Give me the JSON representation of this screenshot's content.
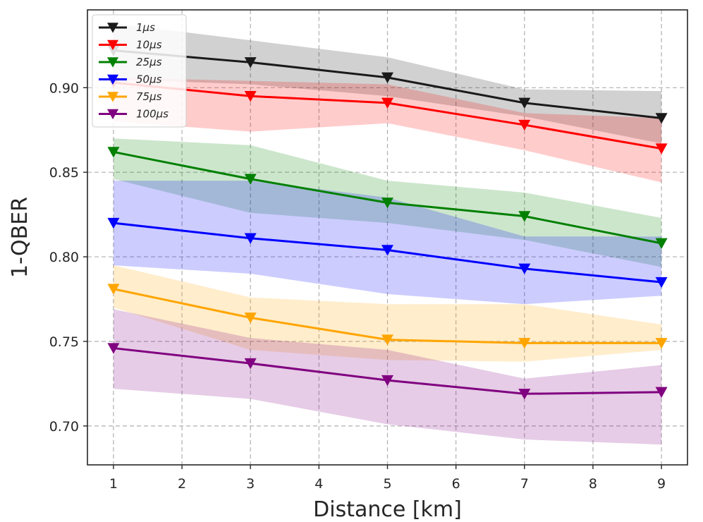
{
  "chart_data": {
    "type": "line",
    "title": "",
    "xlabel": "Distance [km]",
    "ylabel": "1-QBER",
    "x": [
      1,
      3,
      5,
      7,
      9
    ],
    "xlim": [
      0.62,
      9.38
    ],
    "ylim": [
      0.677,
      0.946
    ],
    "xticks": [
      1,
      2,
      3,
      4,
      5,
      6,
      7,
      8,
      9
    ],
    "yticks": [
      0.7,
      0.75,
      0.8,
      0.85,
      0.9
    ],
    "xtick_labels": [
      "1",
      "2",
      "3",
      "4",
      "5",
      "6",
      "7",
      "8",
      "9"
    ],
    "ytick_labels": [
      "0.70",
      "0.75",
      "0.80",
      "0.85",
      "0.90"
    ],
    "grid": true,
    "legend_position": "top-left",
    "marker": "triangle-down",
    "series": [
      {
        "name": "1μs",
        "color": "#1a1a1a",
        "values": [
          0.922,
          0.915,
          0.906,
          0.891,
          0.882
        ],
        "lower": [
          0.905,
          0.902,
          0.895,
          0.883,
          0.867
        ],
        "upper": [
          0.938,
          0.928,
          0.918,
          0.899,
          0.898
        ]
      },
      {
        "name": "10μs",
        "color": "#ff0000",
        "values": [
          0.903,
          0.895,
          0.891,
          0.878,
          0.864
        ],
        "lower": [
          0.88,
          0.874,
          0.879,
          0.863,
          0.844
        ],
        "upper": [
          0.906,
          0.904,
          0.902,
          0.885,
          0.882
        ]
      },
      {
        "name": "25μs",
        "color": "#008000",
        "values": [
          0.862,
          0.846,
          0.832,
          0.824,
          0.808
        ],
        "lower": [
          0.846,
          0.826,
          0.82,
          0.81,
          0.794
        ],
        "upper": [
          0.87,
          0.866,
          0.845,
          0.838,
          0.823
        ]
      },
      {
        "name": "50μs",
        "color": "#0000ff",
        "values": [
          0.82,
          0.811,
          0.804,
          0.793,
          0.785
        ],
        "lower": [
          0.795,
          0.79,
          0.778,
          0.772,
          0.777
        ],
        "upper": [
          0.845,
          0.845,
          0.835,
          0.812,
          0.812
        ]
      },
      {
        "name": "75μs",
        "color": "#ffa500",
        "values": [
          0.781,
          0.764,
          0.751,
          0.749,
          0.749
        ],
        "lower": [
          0.77,
          0.745,
          0.739,
          0.738,
          0.745
        ],
        "upper": [
          0.795,
          0.776,
          0.772,
          0.772,
          0.76
        ]
      },
      {
        "name": "100μs",
        "color": "#800080",
        "values": [
          0.746,
          0.737,
          0.727,
          0.719,
          0.72
        ],
        "lower": [
          0.722,
          0.716,
          0.701,
          0.692,
          0.689
        ],
        "upper": [
          0.769,
          0.752,
          0.745,
          0.728,
          0.736
        ]
      }
    ]
  }
}
